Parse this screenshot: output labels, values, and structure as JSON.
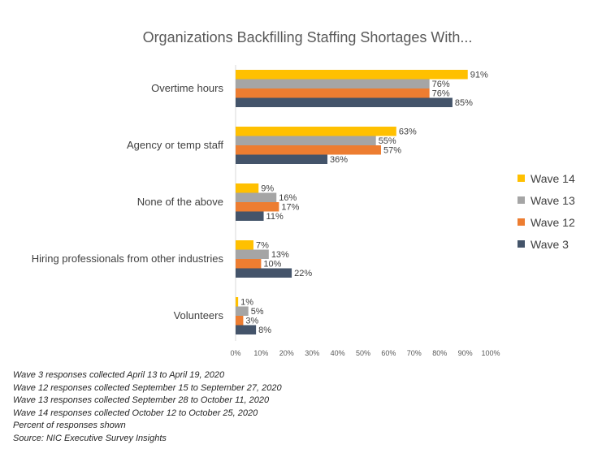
{
  "chart_data": {
    "type": "bar",
    "orientation": "horizontal",
    "title": "Organizations Backfilling Staffing Shortages With...",
    "categories": [
      "Overtime hours",
      "Agency or temp staff",
      "None of the above",
      "Hiring professionals from other industries",
      "Volunteers"
    ],
    "series": [
      {
        "name": "Wave 14",
        "color": "#FFC000",
        "values": [
          91,
          63,
          9,
          7,
          1
        ]
      },
      {
        "name": "Wave 13",
        "color": "#A5A5A5",
        "values": [
          76,
          55,
          16,
          13,
          5
        ]
      },
      {
        "name": "Wave 12",
        "color": "#ED7D31",
        "values": [
          76,
          57,
          17,
          10,
          3
        ]
      },
      {
        "name": "Wave 3",
        "color": "#44546A",
        "values": [
          85,
          36,
          11,
          22,
          8
        ]
      }
    ],
    "value_suffix": "%",
    "xlim": [
      0,
      100
    ],
    "xticks": [
      "0%",
      "10%",
      "20%",
      "30%",
      "40%",
      "50%",
      "60%",
      "70%",
      "80%",
      "90%",
      "100%"
    ],
    "legend_position": "right",
    "grid": false
  },
  "notes": [
    "Wave 3 responses collected April 13 to April 19, 2020",
    "Wave 12 responses collected September 15 to September 27, 2020",
    "Wave 13 responses collected September 28 to October 11, 2020",
    "Wave 14 responses collected October 12 to October 25, 2020",
    "Percent of responses shown",
    "Source: NIC Executive Survey Insights"
  ]
}
